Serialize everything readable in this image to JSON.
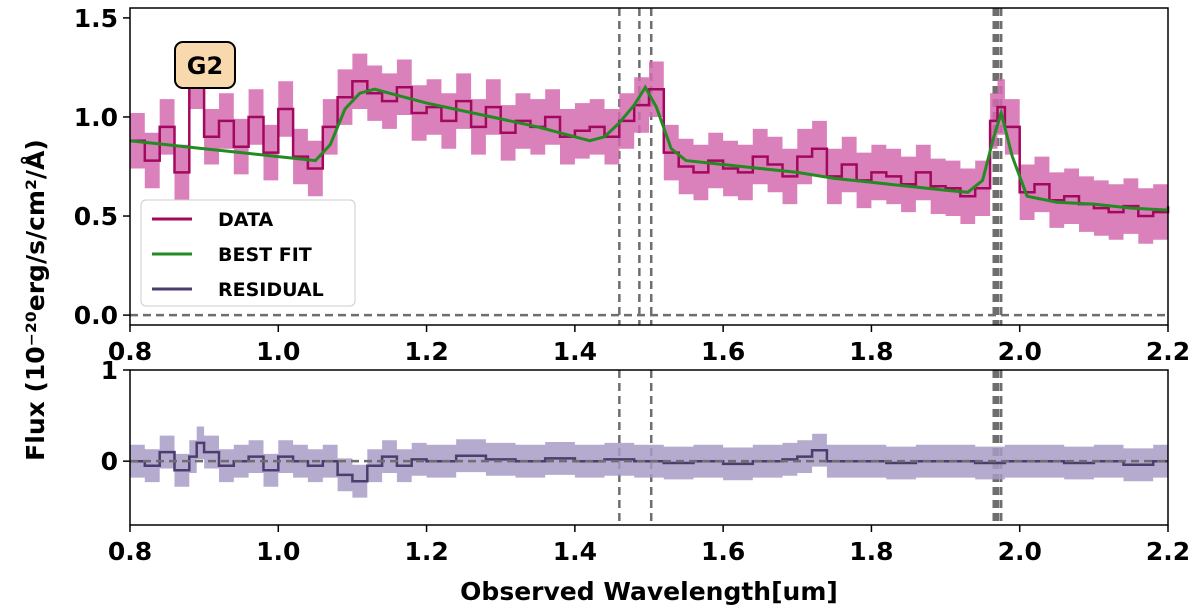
{
  "figure": {
    "label": "G2",
    "ylabel": "Flux (10⁻²⁰erg/s/cm²/Å)",
    "xlabel": "Observed Wavelength[um]"
  },
  "chart_data": [
    {
      "panel": "top",
      "type": "line",
      "xlim": [
        0.8,
        2.2
      ],
      "ylim": [
        -0.05,
        1.55
      ],
      "xticks": [
        "0.8",
        "1.0",
        "1.2",
        "1.4",
        "1.6",
        "1.8",
        "2.0",
        "2.2"
      ],
      "yticks": [
        "0.0",
        "0.5",
        "1.0",
        "1.5"
      ],
      "zero_line": 0.0,
      "vlines": [
        1.46,
        1.487,
        1.503,
        1.965,
        1.968,
        1.971,
        1.975
      ],
      "legend_position": "lower-left",
      "series": [
        {
          "name": "DATA",
          "style": "step-with-error-band",
          "color": "#a3085f",
          "band_color": "#d36aae",
          "x": [
            0.8,
            0.82,
            0.84,
            0.86,
            0.88,
            0.9,
            0.92,
            0.94,
            0.96,
            0.98,
            1.0,
            1.02,
            1.04,
            1.06,
            1.08,
            1.1,
            1.12,
            1.14,
            1.16,
            1.18,
            1.2,
            1.22,
            1.24,
            1.26,
            1.28,
            1.3,
            1.32,
            1.34,
            1.36,
            1.38,
            1.4,
            1.42,
            1.44,
            1.46,
            1.48,
            1.5,
            1.52,
            1.54,
            1.56,
            1.58,
            1.6,
            1.62,
            1.64,
            1.66,
            1.68,
            1.7,
            1.72,
            1.74,
            1.76,
            1.78,
            1.8,
            1.82,
            1.84,
            1.86,
            1.88,
            1.9,
            1.92,
            1.94,
            1.96,
            1.97,
            1.98,
            2.0,
            2.02,
            2.04,
            2.06,
            2.08,
            2.1,
            2.12,
            2.14,
            2.16,
            2.18,
            2.2
          ],
          "y": [
            0.88,
            0.78,
            0.95,
            0.72,
            1.18,
            0.9,
            0.98,
            0.85,
            1.0,
            0.82,
            1.04,
            0.8,
            0.74,
            0.95,
            1.1,
            1.18,
            1.12,
            1.08,
            1.15,
            1.02,
            1.05,
            0.98,
            1.08,
            0.95,
            1.05,
            0.92,
            0.98,
            0.95,
            1.0,
            0.9,
            0.93,
            0.95,
            0.9,
            0.98,
            1.06,
            1.14,
            0.82,
            0.75,
            0.72,
            0.78,
            0.74,
            0.72,
            0.8,
            0.76,
            0.7,
            0.8,
            0.84,
            0.7,
            0.76,
            0.68,
            0.72,
            0.7,
            0.66,
            0.72,
            0.65,
            0.64,
            0.6,
            0.64,
            0.98,
            1.05,
            0.95,
            0.62,
            0.66,
            0.58,
            0.6,
            0.56,
            0.54,
            0.52,
            0.55,
            0.5,
            0.52,
            0.55
          ],
          "err": 0.14
        },
        {
          "name": "BEST FIT",
          "style": "line",
          "color": "#228b22",
          "x": [
            0.8,
            0.85,
            0.9,
            0.95,
            1.0,
            1.05,
            1.07,
            1.09,
            1.11,
            1.13,
            1.16,
            1.2,
            1.25,
            1.3,
            1.35,
            1.4,
            1.42,
            1.44,
            1.46,
            1.48,
            1.495,
            1.51,
            1.53,
            1.55,
            1.6,
            1.65,
            1.7,
            1.75,
            1.8,
            1.85,
            1.9,
            1.93,
            1.95,
            1.965,
            1.975,
            1.99,
            2.01,
            2.05,
            2.1,
            2.15,
            2.2
          ],
          "y": [
            0.88,
            0.86,
            0.84,
            0.82,
            0.8,
            0.78,
            0.86,
            1.04,
            1.12,
            1.14,
            1.11,
            1.07,
            1.03,
            0.99,
            0.95,
            0.9,
            0.88,
            0.9,
            0.97,
            1.06,
            1.15,
            1.05,
            0.84,
            0.78,
            0.76,
            0.74,
            0.72,
            0.69,
            0.67,
            0.65,
            0.63,
            0.62,
            0.68,
            0.9,
            1.02,
            0.8,
            0.6,
            0.57,
            0.56,
            0.54,
            0.53
          ]
        },
        {
          "name": "RESIDUAL",
          "style": "legend-only",
          "color": "#4b3d6e"
        }
      ]
    },
    {
      "panel": "bottom",
      "type": "line",
      "xlim": [
        0.8,
        2.2
      ],
      "ylim": [
        -0.7,
        1.0
      ],
      "xticks": [
        "0.8",
        "1.0",
        "1.2",
        "1.4",
        "1.6",
        "1.8",
        "2.0",
        "2.2"
      ],
      "yticks": [
        "0",
        "1"
      ],
      "zero_line": 0.0,
      "vlines": [
        1.46,
        1.503,
        1.965,
        1.968,
        1.971,
        1.975
      ],
      "series": [
        {
          "name": "RESIDUAL",
          "style": "step-with-error-band",
          "color": "#4b3d6e",
          "band_color": "#a79cc6",
          "x": [
            0.8,
            0.82,
            0.84,
            0.86,
            0.88,
            0.89,
            0.9,
            0.92,
            0.94,
            0.96,
            0.98,
            1.0,
            1.02,
            1.04,
            1.06,
            1.08,
            1.1,
            1.12,
            1.14,
            1.16,
            1.18,
            1.2,
            1.24,
            1.28,
            1.32,
            1.36,
            1.4,
            1.44,
            1.48,
            1.52,
            1.56,
            1.6,
            1.64,
            1.68,
            1.7,
            1.72,
            1.74,
            1.78,
            1.82,
            1.86,
            1.9,
            1.94,
            1.98,
            2.02,
            2.06,
            2.1,
            2.14,
            2.18,
            2.2
          ],
          "y": [
            0.0,
            -0.05,
            0.1,
            -0.1,
            0.05,
            0.2,
            0.1,
            -0.05,
            0.0,
            0.05,
            -0.1,
            0.05,
            0.0,
            -0.05,
            0.0,
            -0.15,
            -0.22,
            -0.05,
            0.05,
            -0.05,
            0.02,
            0.0,
            0.06,
            0.02,
            0.0,
            0.03,
            0.0,
            0.02,
            0.0,
            -0.02,
            0.0,
            -0.03,
            0.0,
            0.02,
            0.05,
            0.12,
            0.0,
            0.0,
            -0.02,
            0.0,
            0.0,
            -0.02,
            0.0,
            0.0,
            -0.02,
            0.0,
            -0.04,
            0.0,
            0.0
          ],
          "err": 0.18
        }
      ]
    }
  ]
}
